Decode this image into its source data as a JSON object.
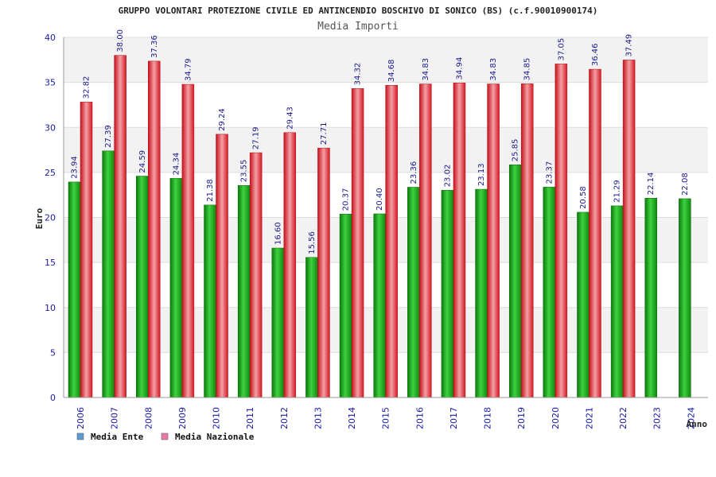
{
  "chart_data": {
    "type": "bar",
    "title": "GRUPPO VOLONTARI PROTEZIONE CIVILE ED ANTINCENDIO BOSCHIVO DI SONICO (BS) (c.f.90010900174)",
    "subtitle": "Media Importi",
    "xlabel": "Anno",
    "ylabel": "Euro",
    "ylim": [
      0,
      40
    ],
    "yticks": [
      0,
      5,
      10,
      15,
      20,
      25,
      30,
      35,
      40
    ],
    "categories": [
      "2006",
      "2007",
      "2008",
      "2009",
      "2010",
      "2011",
      "2012",
      "2013",
      "2014",
      "2015",
      "2016",
      "2017",
      "2018",
      "2019",
      "2020",
      "2021",
      "2022",
      "2023",
      "2024"
    ],
    "series": [
      {
        "name": "Media Ente",
        "color": "#1fa81f",
        "legend_color": "#5b9bd5",
        "values": [
          23.94,
          27.39,
          24.59,
          24.34,
          21.38,
          23.55,
          16.6,
          15.56,
          20.37,
          20.4,
          23.36,
          23.02,
          23.13,
          25.85,
          23.37,
          20.58,
          21.29,
          22.14,
          22.08
        ],
        "labels": [
          "23.94",
          "27.39",
          "24.59",
          "24.34",
          "21.38",
          "23.55",
          "16.60",
          "15.56",
          "20.37",
          "20.40",
          "23.36",
          "23.02",
          "23.13",
          "25.85",
          "23.37",
          "20.58",
          "21.29",
          "22.14",
          "22.08"
        ]
      },
      {
        "name": "Media Nazionale",
        "color": "#e8202a",
        "legend_color": "#e87aa8",
        "values": [
          32.82,
          38.0,
          37.36,
          34.79,
          29.24,
          27.19,
          29.43,
          27.71,
          34.32,
          34.68,
          34.83,
          34.94,
          34.83,
          34.85,
          37.05,
          36.46,
          37.49,
          null,
          null
        ],
        "labels": [
          "32.82",
          "38.00",
          "37.36",
          "34.79",
          "29.24",
          "27.19",
          "29.43",
          "27.71",
          "34.32",
          "34.68",
          "34.83",
          "34.94",
          "34.83",
          "34.85",
          "37.05",
          "36.46",
          "37.49",
          null,
          null
        ]
      }
    ],
    "grid": true,
    "legend_position": "bottom-left"
  }
}
